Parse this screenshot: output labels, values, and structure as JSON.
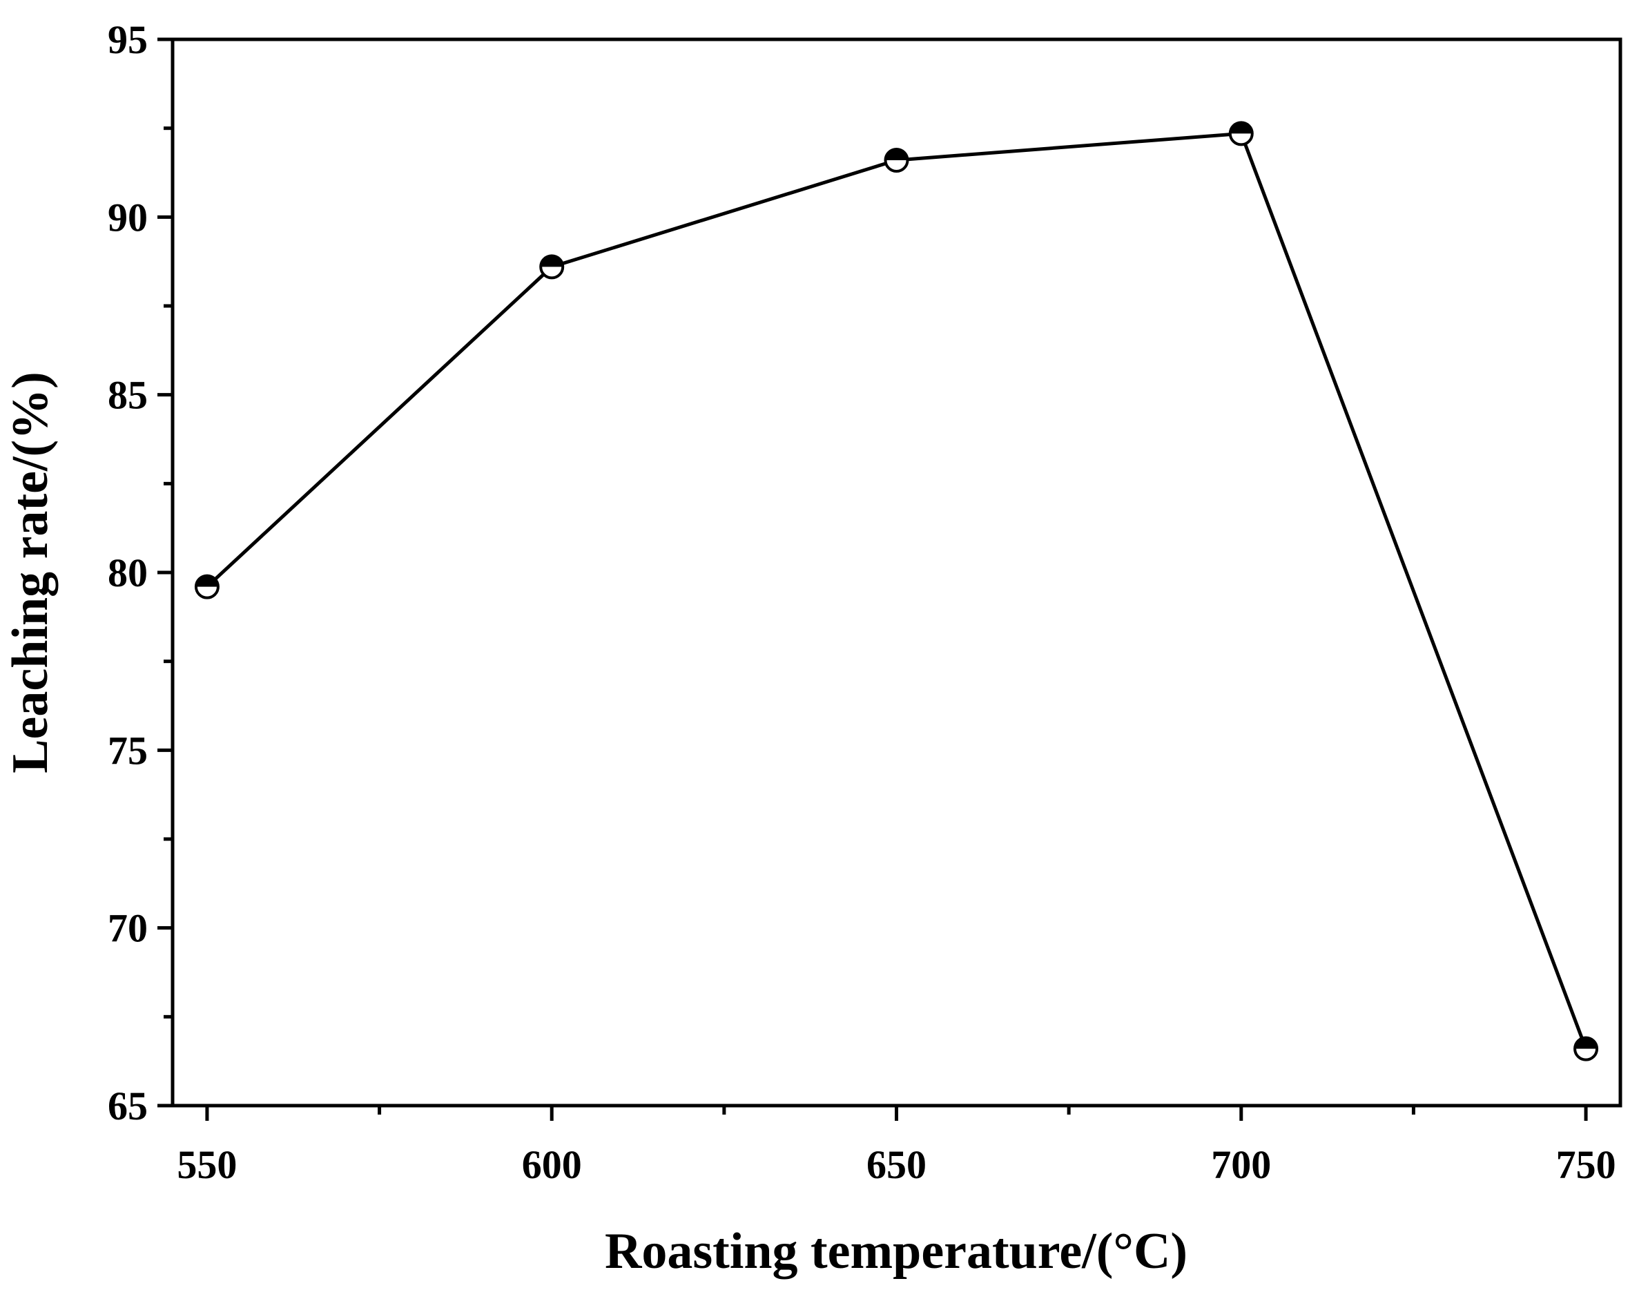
{
  "chart_data": {
    "type": "line",
    "title": "",
    "xlabel": "Roasting temperature/(°C)",
    "ylabel": "Leaching rate/(%)",
    "xlim": [
      545,
      755
    ],
    "ylim": [
      65,
      95
    ],
    "x_ticks": [
      550,
      600,
      650,
      700,
      750
    ],
    "x_tick_labels": [
      "550",
      "600",
      "650",
      "700",
      "750"
    ],
    "x_minor_ticks": [
      575,
      625,
      675,
      725
    ],
    "y_ticks": [
      65,
      70,
      75,
      80,
      85,
      90,
      95
    ],
    "y_tick_labels": [
      "65",
      "70",
      "75",
      "80",
      "85",
      "90",
      "95"
    ],
    "y_minor_ticks": [
      67.5,
      72.5,
      77.5,
      82.5,
      87.5,
      92.5
    ],
    "grid": false,
    "series": [
      {
        "name": "Leaching rate",
        "marker": "half-filled-circle",
        "color": "#000000",
        "x": [
          550,
          600,
          650,
          700,
          750
        ],
        "y": [
          79.6,
          88.6,
          91.6,
          92.35,
          66.6
        ]
      }
    ]
  }
}
